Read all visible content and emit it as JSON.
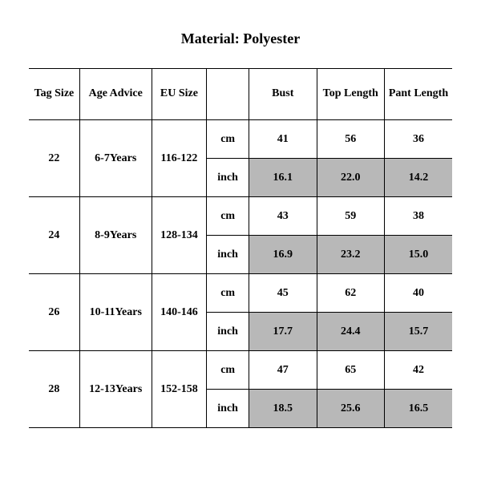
{
  "title": "Material: Polyester",
  "table": {
    "columns": [
      "Tag Size",
      "Age Advice",
      "EU Size",
      "",
      "Bust",
      "Top Length",
      "Pant Length"
    ],
    "colors": {
      "background": "#ffffff",
      "border": "#000000",
      "shade": "#b8b8b8",
      "text": "#000000"
    },
    "font": {
      "family": "Times New Roman",
      "header_size_pt": 14,
      "cell_size_pt": 14,
      "title_size_pt": 18,
      "weight": "bold"
    },
    "col_widths_pct": [
      12,
      17,
      13,
      10,
      16,
      16,
      16
    ],
    "rows": [
      {
        "tag_size": "22",
        "age_advice": "6-7Years",
        "eu_size": "116-122",
        "cm": {
          "unit": "cm",
          "bust": "41",
          "top": "56",
          "pant": "36"
        },
        "inch": {
          "unit": "inch",
          "bust": "16.1",
          "top": "22.0",
          "pant": "14.2"
        }
      },
      {
        "tag_size": "24",
        "age_advice": "8-9Years",
        "eu_size": "128-134",
        "cm": {
          "unit": "cm",
          "bust": "43",
          "top": "59",
          "pant": "38"
        },
        "inch": {
          "unit": "inch",
          "bust": "16.9",
          "top": "23.2",
          "pant": "15.0"
        }
      },
      {
        "tag_size": "26",
        "age_advice": "10-11Years",
        "eu_size": "140-146",
        "cm": {
          "unit": "cm",
          "bust": "45",
          "top": "62",
          "pant": "40"
        },
        "inch": {
          "unit": "inch",
          "bust": "17.7",
          "top": "24.4",
          "pant": "15.7"
        }
      },
      {
        "tag_size": "28",
        "age_advice": "12-13Years",
        "eu_size": "152-158",
        "cm": {
          "unit": "cm",
          "bust": "47",
          "top": "65",
          "pant": "42"
        },
        "inch": {
          "unit": "inch",
          "bust": "18.5",
          "top": "25.6",
          "pant": "16.5"
        }
      }
    ]
  }
}
